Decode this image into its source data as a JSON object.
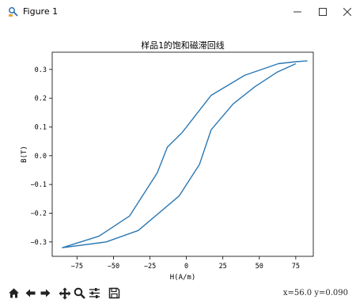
{
  "window": {
    "title": "Figure 1"
  },
  "icons": {
    "app": "figure-icon",
    "minimize": "minimize-icon",
    "maximize": "maximize-icon",
    "close": "close-icon",
    "home": "home-icon",
    "back": "arrow-left-icon",
    "forward": "arrow-right-icon",
    "pan": "move-icon",
    "zoom": "magnifier-icon",
    "configure": "sliders-icon",
    "save": "save-icon"
  },
  "status": {
    "coords": "x=56.0  y=0.090"
  },
  "colors": {
    "line": "#2a78b4"
  },
  "chart_data": {
    "type": "line",
    "title": "样品1的饱和磁滞回线",
    "xlabel": "H(A/m)",
    "ylabel": "B(T)",
    "xlim": [
      -92,
      87
    ],
    "ylim": [
      -0.35,
      0.36
    ],
    "xticks": [
      -75,
      -50,
      -25,
      0,
      25,
      50,
      75
    ],
    "yticks": [
      -0.3,
      -0.2,
      -0.1,
      0.0,
      0.1,
      0.2,
      0.3
    ],
    "xtick_labels": [
      "−75",
      "−50",
      "−25",
      "0",
      "25",
      "50",
      "75"
    ],
    "ytick_labels": [
      "−0.3",
      "−0.2",
      "−0.1",
      "0.0",
      "0.1",
      "0.2",
      "0.3"
    ],
    "grid": false,
    "series": [
      {
        "x": [
          83,
          75,
          63,
          40,
          17,
          -3,
          -13,
          -20,
          -39,
          -60,
          -85,
          -55,
          -33,
          -5,
          9,
          17,
          32,
          47,
          62,
          75
        ],
        "y": [
          0.33,
          0.327,
          0.32,
          0.28,
          0.21,
          0.08,
          0.03,
          -0.06,
          -0.21,
          -0.28,
          -0.32,
          -0.3,
          -0.26,
          -0.14,
          -0.03,
          0.09,
          0.18,
          0.24,
          0.29,
          0.32
        ]
      }
    ]
  }
}
